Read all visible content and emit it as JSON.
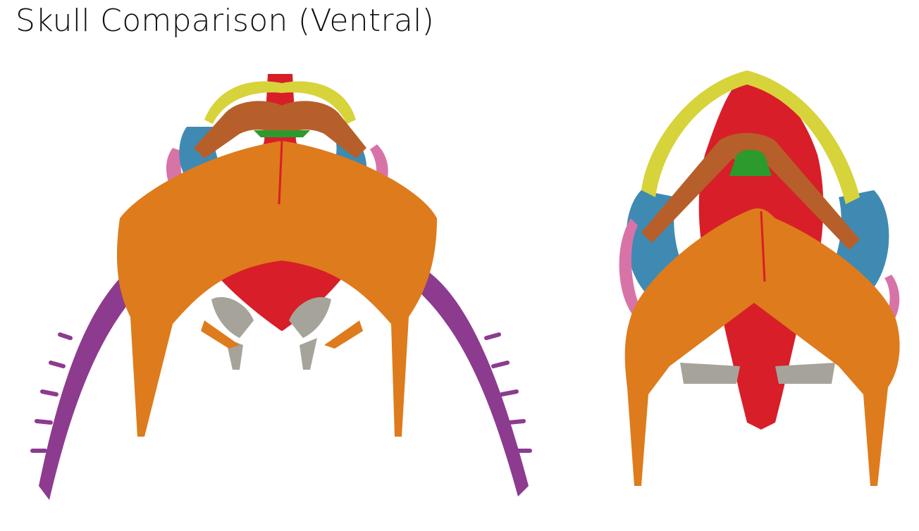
{
  "title": "Skull Comparison (Ventral)",
  "colors": {
    "maxilla": "#d7d33a",
    "vomer": "#b65f2a",
    "parasphenoid": "#d81e28",
    "pterygoid_frontal": "#3f8ab3",
    "quadrate": "#d873a8",
    "lower_jaw": "#de7b1c",
    "hyoid": "#8c3b8f",
    "otic": "#a6a49a",
    "small_green": "#2c9a2c"
  },
  "icons": {
    "left_skull": "skull-3d-ventral-left",
    "right_skull": "skull-3d-ventral-right"
  }
}
